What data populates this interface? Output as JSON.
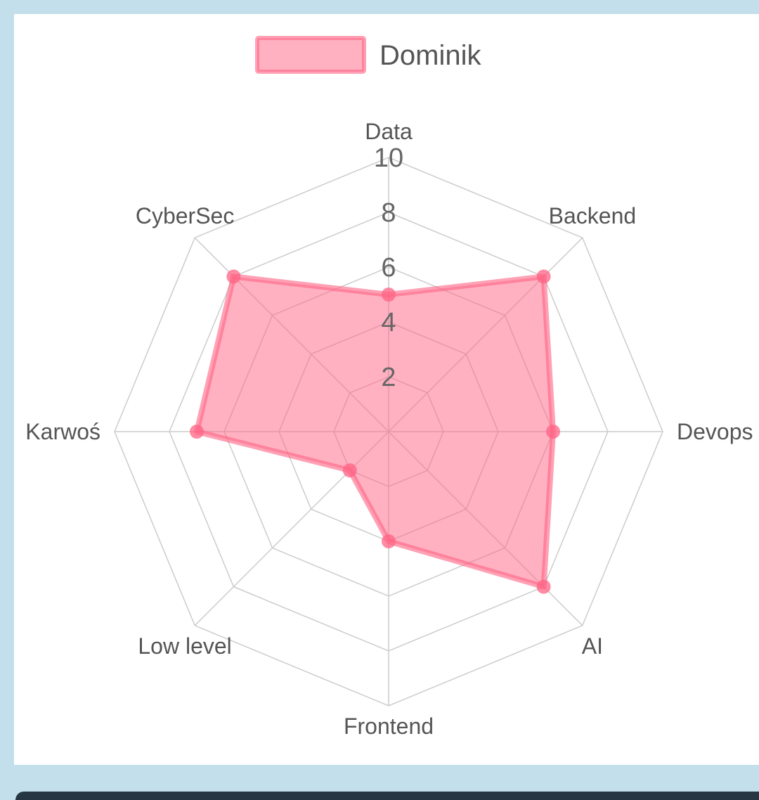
{
  "chart_data": {
    "type": "radar",
    "axes": [
      "Data",
      "Backend",
      "Devops",
      "AI",
      "Frontend",
      "Low level",
      "Karwoś",
      "CyberSec"
    ],
    "series": [
      {
        "name": "Dominik",
        "values": [
          5,
          8,
          6,
          8,
          4,
          2,
          7,
          8
        ]
      }
    ],
    "rlim": [
      0,
      10
    ],
    "ticks": [
      "2",
      "4",
      "6",
      "8",
      "10"
    ],
    "legend_position": "top",
    "grid": true,
    "colors": {
      "fill": "#ff6384",
      "stroke": "#ff6384",
      "grid": "#cccccc"
    }
  }
}
